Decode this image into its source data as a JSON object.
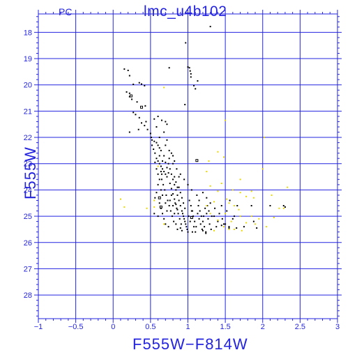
{
  "chart_data": {
    "type": "scatter",
    "title": "lmc_u4b102",
    "corner_label": "PC",
    "xlabel": "F555W−F814W",
    "ylabel": "F555W",
    "xlim": [
      -1,
      3
    ],
    "ylim": [
      28.9,
      17.3
    ],
    "y_inverted": true,
    "grid": true,
    "xticks": [
      -1,
      -0.5,
      0,
      0.5,
      1,
      1.5,
      2,
      2.5,
      3
    ],
    "xtick_labels": [
      "−1",
      "−0.5",
      "0",
      "0.5",
      "1",
      "1.5",
      "2",
      "2.5",
      "3"
    ],
    "yticks": [
      18,
      19,
      20,
      21,
      22,
      23,
      24,
      25,
      26,
      27,
      28
    ],
    "ytick_labels": [
      "18",
      "19",
      "20",
      "21",
      "22",
      "23",
      "24",
      "25",
      "26",
      "27",
      "28"
    ],
    "colors": {
      "axis": "#2323e0",
      "grid": "#2323e0",
      "main_points": "#000000",
      "secondary_points": "#e8d800"
    },
    "series": [
      {
        "color": "#000000",
        "marker": "dot",
        "points": [
          [
            1.3,
            17.78
          ],
          [
            0.97,
            18.4
          ],
          [
            1.0,
            19.32
          ],
          [
            1.02,
            19.35
          ],
          [
            0.75,
            19.35
          ],
          [
            1.03,
            19.47
          ],
          [
            1.04,
            19.58
          ],
          [
            1.04,
            19.7
          ],
          [
            1.13,
            19.85
          ],
          [
            0.15,
            19.4
          ],
          [
            0.2,
            19.45
          ],
          [
            0.22,
            19.65
          ],
          [
            0.35,
            19.92
          ],
          [
            0.38,
            19.97
          ],
          [
            0.42,
            20.03
          ],
          [
            0.27,
            19.98
          ],
          [
            1.08,
            20.03
          ],
          [
            1.1,
            20.15
          ],
          [
            0.18,
            20.27
          ],
          [
            0.22,
            20.32
          ],
          [
            0.22,
            20.45
          ],
          [
            0.25,
            20.55
          ],
          [
            0.32,
            20.65
          ],
          [
            0.43,
            20.8
          ],
          [
            0.96,
            20.75
          ],
          [
            0.27,
            21.05
          ],
          [
            0.3,
            21.13
          ],
          [
            0.35,
            21.25
          ],
          [
            0.38,
            21.45
          ],
          [
            0.42,
            21.55
          ],
          [
            0.44,
            21.4
          ],
          [
            0.22,
            21.8
          ],
          [
            0.34,
            21.7
          ],
          [
            0.46,
            21.7
          ],
          [
            0.5,
            21.85
          ],
          [
            0.55,
            21.3
          ],
          [
            0.58,
            21.6
          ],
          [
            0.6,
            21.2
          ],
          [
            0.65,
            21.35
          ],
          [
            0.7,
            21.4
          ],
          [
            0.72,
            21.5
          ],
          [
            0.68,
            21.8
          ],
          [
            0.62,
            22.0
          ],
          [
            0.51,
            22.0
          ],
          [
            0.52,
            22.1
          ],
          [
            0.55,
            22.15
          ],
          [
            0.58,
            22.2
          ],
          [
            0.6,
            22.3
          ],
          [
            0.62,
            22.4
          ],
          [
            0.64,
            22.5
          ],
          [
            0.7,
            22.3
          ],
          [
            0.72,
            22.1
          ],
          [
            0.75,
            22.5
          ],
          [
            0.78,
            22.6
          ],
          [
            0.56,
            22.6
          ],
          [
            0.58,
            22.8
          ],
          [
            0.6,
            22.9
          ],
          [
            0.62,
            23.0
          ],
          [
            0.64,
            23.1
          ],
          [
            0.66,
            23.2
          ],
          [
            0.68,
            23.3
          ],
          [
            0.7,
            23.4
          ],
          [
            0.72,
            23.5
          ],
          [
            0.74,
            23.0
          ],
          [
            0.76,
            23.2
          ],
          [
            0.78,
            23.4
          ],
          [
            0.8,
            23.6
          ],
          [
            0.82,
            23.8
          ],
          [
            0.84,
            24.0
          ],
          [
            0.86,
            24.2
          ],
          [
            0.88,
            23.9
          ],
          [
            0.9,
            24.1
          ],
          [
            0.92,
            24.3
          ],
          [
            0.94,
            24.5
          ],
          [
            0.96,
            24.7
          ],
          [
            0.65,
            23.6
          ],
          [
            0.67,
            23.8
          ],
          [
            0.69,
            24.0
          ],
          [
            0.71,
            24.2
          ],
          [
            0.73,
            24.4
          ],
          [
            0.75,
            24.6
          ],
          [
            0.77,
            24.8
          ],
          [
            0.79,
            25.0
          ],
          [
            0.81,
            25.2
          ],
          [
            0.83,
            24.5
          ],
          [
            0.85,
            24.7
          ],
          [
            0.87,
            24.9
          ],
          [
            0.89,
            25.1
          ],
          [
            0.91,
            25.3
          ],
          [
            0.93,
            24.9
          ],
          [
            0.95,
            25.1
          ],
          [
            0.97,
            25.3
          ],
          [
            0.99,
            25.5
          ],
          [
            1.01,
            25.0
          ],
          [
            1.03,
            25.2
          ],
          [
            1.05,
            24.8
          ],
          [
            1.07,
            25.0
          ],
          [
            1.09,
            25.2
          ],
          [
            1.11,
            25.4
          ],
          [
            1.13,
            24.9
          ],
          [
            1.15,
            25.1
          ],
          [
            1.17,
            25.3
          ],
          [
            1.19,
            25.5
          ],
          [
            1.21,
            25.0
          ],
          [
            1.23,
            24.7
          ],
          [
            1.25,
            24.9
          ],
          [
            1.27,
            25.1
          ],
          [
            1.29,
            25.3
          ],
          [
            1.31,
            25.5
          ],
          [
            1.35,
            25.0
          ],
          [
            1.4,
            25.2
          ],
          [
            1.45,
            24.6
          ],
          [
            1.5,
            25.3
          ],
          [
            1.55,
            25.4
          ],
          [
            1.6,
            25.1
          ],
          [
            1.65,
            25.45
          ],
          [
            1.15,
            24.4
          ],
          [
            1.2,
            24.1
          ],
          [
            1.25,
            24.3
          ],
          [
            1.3,
            24.5
          ],
          [
            1.05,
            24.0
          ],
          [
            1.0,
            23.8
          ],
          [
            0.95,
            23.6
          ],
          [
            0.9,
            23.4
          ],
          [
            0.85,
            23.2
          ],
          [
            0.8,
            23.0
          ],
          [
            0.75,
            22.8
          ],
          [
            0.65,
            23.4
          ],
          [
            0.62,
            23.6
          ],
          [
            0.6,
            23.8
          ],
          [
            0.58,
            24.1
          ],
          [
            0.56,
            24.3
          ],
          [
            0.62,
            24.5
          ],
          [
            0.64,
            24.7
          ],
          [
            0.66,
            24.9
          ],
          [
            0.68,
            25.1
          ],
          [
            0.7,
            25.3
          ],
          [
            0.55,
            24.9
          ],
          [
            0.6,
            25.0
          ],
          [
            0.72,
            24.8
          ],
          [
            0.74,
            25.4
          ],
          [
            0.76,
            24.4
          ],
          [
            0.78,
            24.2
          ],
          [
            0.8,
            24.6
          ],
          [
            0.82,
            24.9
          ],
          [
            0.84,
            25.3
          ],
          [
            0.86,
            25.5
          ],
          [
            0.88,
            24.4
          ],
          [
            0.9,
            24.6
          ],
          [
            0.92,
            24.8
          ],
          [
            0.94,
            25.0
          ],
          [
            0.96,
            25.2
          ],
          [
            0.98,
            25.4
          ],
          [
            1.0,
            25.6
          ],
          [
            1.02,
            24.4
          ],
          [
            1.04,
            24.6
          ],
          [
            1.06,
            24.8
          ],
          [
            1.08,
            25.4
          ],
          [
            1.1,
            25.6
          ],
          [
            1.12,
            24.2
          ],
          [
            1.14,
            24.6
          ],
          [
            1.16,
            24.8
          ],
          [
            1.18,
            25.0
          ],
          [
            1.2,
            25.2
          ],
          [
            1.22,
            25.4
          ],
          [
            1.24,
            25.6
          ],
          [
            1.26,
            24.6
          ],
          [
            1.28,
            24.8
          ],
          [
            1.32,
            25.0
          ],
          [
            1.36,
            24.7
          ],
          [
            1.38,
            25.4
          ],
          [
            1.42,
            24.9
          ],
          [
            1.46,
            25.1
          ],
          [
            1.48,
            25.3
          ],
          [
            1.52,
            24.8
          ],
          [
            1.56,
            24.4
          ],
          [
            1.62,
            25.0
          ],
          [
            1.66,
            24.6
          ],
          [
            0.7,
            22.95
          ],
          [
            0.72,
            23.15
          ],
          [
            0.74,
            23.35
          ],
          [
            0.68,
            22.7
          ],
          [
            0.66,
            22.9
          ],
          [
            0.64,
            23.3
          ],
          [
            0.62,
            22.7
          ],
          [
            0.82,
            23.5
          ],
          [
            0.84,
            23.7
          ],
          [
            0.86,
            23.9
          ],
          [
            0.88,
            23.5
          ],
          [
            0.76,
            23.75
          ],
          [
            0.78,
            23.95
          ],
          [
            0.8,
            24.15
          ],
          [
            0.82,
            24.35
          ],
          [
            0.84,
            24.55
          ],
          [
            0.86,
            24.75
          ],
          [
            0.7,
            24.5
          ],
          [
            0.66,
            24.2
          ],
          [
            0.64,
            24.0
          ],
          [
            0.6,
            23.4
          ],
          [
            0.58,
            23.2
          ],
          [
            0.56,
            22.95
          ],
          [
            0.54,
            22.45
          ],
          [
            0.52,
            22.3
          ],
          [
            0.8,
            22.7
          ],
          [
            0.82,
            22.9
          ],
          [
            1.85,
            24.6
          ],
          [
            2.1,
            24.6
          ],
          [
            2.28,
            24.6
          ],
          [
            2.3,
            24.65
          ],
          [
            1.45,
            25.35
          ],
          [
            1.55,
            25.45
          ],
          [
            1.75,
            25.4
          ],
          [
            1.88,
            25.2
          ],
          [
            1.92,
            25.45
          ],
          [
            0.9,
            25.45
          ],
          [
            0.92,
            25.55
          ],
          [
            1.06,
            25.6
          ],
          [
            1.2,
            25.55
          ],
          [
            1.24,
            25.65
          ]
        ]
      },
      {
        "color": "#000000",
        "marker": "open-square",
        "points": [
          [
            0.24,
            20.42
          ],
          [
            0.38,
            20.85
          ],
          [
            1.12,
            22.88
          ],
          [
            0.62,
            24.3
          ],
          [
            0.64,
            24.65
          ],
          [
            1.05,
            25.05
          ]
        ]
      },
      {
        "color": "#e8d800",
        "marker": "dot",
        "points": [
          [
            0.68,
            20.1
          ],
          [
            1.5,
            21.35
          ],
          [
            2.02,
            22.0
          ],
          [
            1.4,
            22.55
          ],
          [
            1.48,
            22.75
          ],
          [
            1.28,
            22.9
          ],
          [
            2.0,
            23.2
          ],
          [
            1.7,
            23.6
          ],
          [
            1.45,
            23.75
          ],
          [
            1.3,
            23.85
          ],
          [
            2.33,
            23.9
          ],
          [
            1.85,
            24.05
          ],
          [
            1.4,
            24.05
          ],
          [
            1.7,
            24.1
          ],
          [
            2.12,
            24.2
          ],
          [
            1.78,
            24.25
          ],
          [
            1.88,
            24.3
          ],
          [
            1.52,
            24.35
          ],
          [
            1.35,
            24.45
          ],
          [
            1.55,
            24.5
          ],
          [
            0.1,
            24.35
          ],
          [
            0.15,
            24.65
          ],
          [
            0.45,
            24.7
          ],
          [
            0.55,
            24.65
          ],
          [
            1.25,
            24.6
          ],
          [
            1.62,
            24.6
          ],
          [
            1.68,
            24.75
          ],
          [
            2.22,
            24.7
          ],
          [
            2.28,
            24.7
          ],
          [
            1.3,
            24.9
          ],
          [
            1.5,
            24.9
          ],
          [
            1.7,
            25.0
          ],
          [
            1.85,
            25.0
          ],
          [
            1.95,
            25.1
          ],
          [
            1.4,
            25.15
          ],
          [
            1.58,
            25.2
          ],
          [
            1.78,
            25.25
          ],
          [
            1.9,
            25.3
          ],
          [
            2.05,
            25.4
          ],
          [
            1.48,
            25.4
          ],
          [
            1.55,
            25.5
          ],
          [
            1.62,
            25.5
          ],
          [
            1.72,
            25.55
          ],
          [
            1.35,
            25.55
          ],
          [
            0.68,
            25.3
          ],
          [
            0.6,
            23.1
          ],
          [
            0.55,
            24.4
          ],
          [
            1.25,
            23.3
          ],
          [
            1.6,
            24.0
          ],
          [
            2.15,
            25.05
          ]
        ]
      }
    ]
  }
}
